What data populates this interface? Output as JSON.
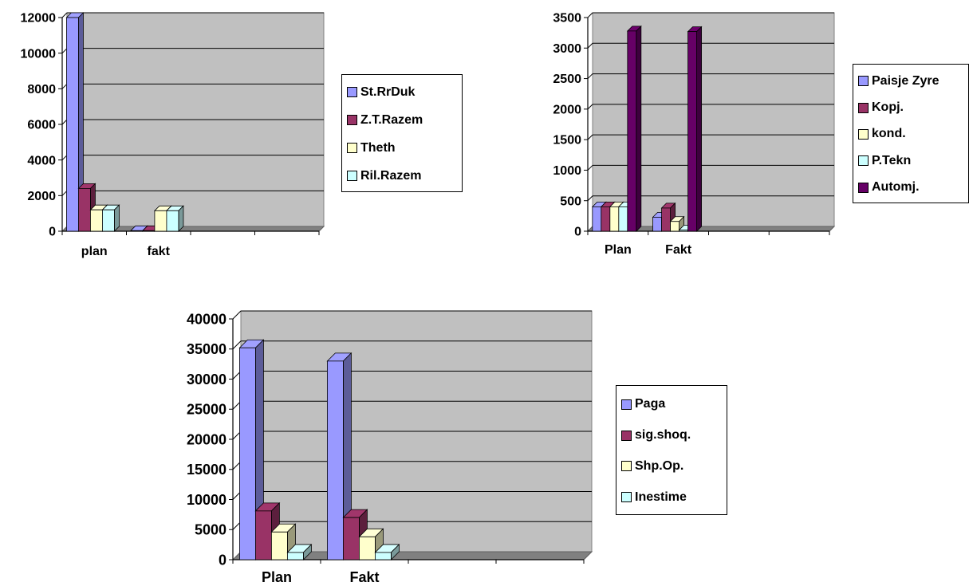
{
  "chart_data": [
    {
      "type": "bar",
      "categories": [
        "plan",
        "fakt",
        "",
        ""
      ],
      "series": [
        {
          "name": "St.RrDuk",
          "values": [
            12000,
            30,
            null,
            null
          ],
          "color": "#9999ff"
        },
        {
          "name": "Z.T.Razem",
          "values": [
            2400,
            30,
            null,
            null
          ],
          "color": "#993366"
        },
        {
          "name": "Theth",
          "values": [
            1200,
            1150,
            null,
            null
          ],
          "color": "#ffffcc"
        },
        {
          "name": "Ril.Razem",
          "values": [
            1200,
            1150,
            null,
            null
          ],
          "color": "#ccffff"
        }
      ],
      "ylim": [
        0,
        12000
      ],
      "yticks": [
        0,
        2000,
        4000,
        6000,
        8000,
        10000,
        12000
      ],
      "grid": true,
      "legend": "right",
      "plot_bg": "#c0c0c0"
    },
    {
      "type": "bar",
      "categories": [
        "Plan",
        "Fakt",
        "",
        ""
      ],
      "series": [
        {
          "name": "Paisje Zyre",
          "values": [
            400,
            230,
            null,
            null
          ],
          "color": "#9999ff"
        },
        {
          "name": "Kopj.",
          "values": [
            400,
            380,
            null,
            null
          ],
          "color": "#993366"
        },
        {
          "name": "kond.",
          "values": [
            400,
            160,
            null,
            null
          ],
          "color": "#ffffcc"
        },
        {
          "name": "P.Tekn",
          "values": [
            400,
            20,
            null,
            null
          ],
          "color": "#ccffff"
        },
        {
          "name": "Automj.",
          "values": [
            3280,
            3270,
            null,
            null
          ],
          "color": "#660066"
        }
      ],
      "ylim": [
        0,
        3500
      ],
      "yticks": [
        0,
        500,
        1000,
        1500,
        2000,
        2500,
        3000,
        3500
      ],
      "grid": true,
      "legend": "right",
      "plot_bg": "#c0c0c0"
    },
    {
      "type": "bar",
      "categories": [
        "Plan",
        "Fakt",
        "",
        ""
      ],
      "series": [
        {
          "name": "Paga",
          "values": [
            35200,
            33000,
            null,
            null
          ],
          "color": "#9999ff"
        },
        {
          "name": "sig.shoq.",
          "values": [
            8100,
            7000,
            null,
            null
          ],
          "color": "#993366"
        },
        {
          "name": "Shp.Op.",
          "values": [
            4600,
            3800,
            null,
            null
          ],
          "color": "#ffffcc"
        },
        {
          "name": "Inestime",
          "values": [
            1200,
            1200,
            null,
            null
          ],
          "color": "#ccffff"
        }
      ],
      "ylim": [
        0,
        40000
      ],
      "yticks": [
        0,
        5000,
        10000,
        15000,
        20000,
        25000,
        30000,
        35000,
        40000
      ],
      "grid": true,
      "legend": "right",
      "plot_bg": "#c0c0c0"
    }
  ]
}
